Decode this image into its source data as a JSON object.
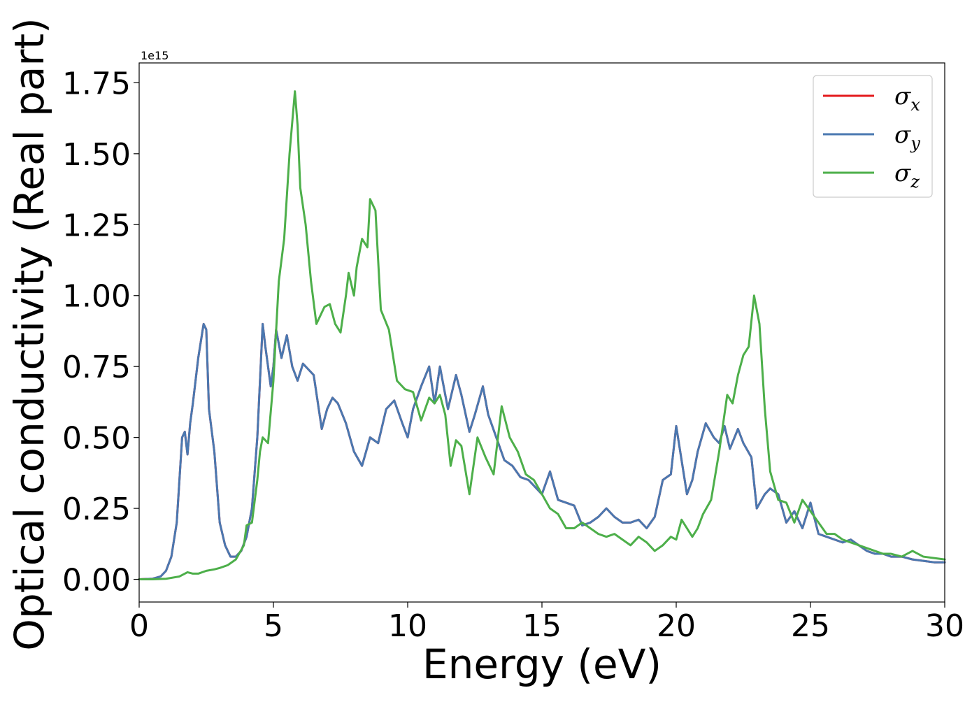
{
  "chart_data": {
    "type": "line",
    "xlabel": "Energy (eV)",
    "ylabel": "Optical conductivity (Real part)",
    "offset_text": "1e15",
    "xlim": [
      0,
      30
    ],
    "ylim": [
      -0.08,
      1.82
    ],
    "y_multiplier": 1000000000000000.0,
    "xticks": [
      "0",
      "5",
      "10",
      "15",
      "20",
      "25",
      "30"
    ],
    "yticks": [
      "0.00",
      "0.25",
      "0.50",
      "0.75",
      "1.00",
      "1.25",
      "1.50",
      "1.75"
    ],
    "legend_position": "top-right",
    "series": [
      {
        "name": "σx",
        "legend_symbol": "σ",
        "legend_subscript": "x",
        "color": "#e41a1c",
        "x": [
          0,
          0.5,
          0.8,
          1.0,
          1.2,
          1.4,
          1.6,
          1.7,
          1.8,
          1.9,
          2.0,
          2.2,
          2.4,
          2.5,
          2.6,
          2.8,
          3.0,
          3.2,
          3.4,
          3.6,
          3.8,
          4.0,
          4.2,
          4.4,
          4.6,
          4.7,
          4.9,
          5.0,
          5.1,
          5.3,
          5.5,
          5.7,
          5.9,
          6.1,
          6.3,
          6.5,
          6.8,
          7.0,
          7.2,
          7.4,
          7.7,
          8.0,
          8.3,
          8.6,
          8.9,
          9.2,
          9.5,
          9.8,
          10.0,
          10.2,
          10.5,
          10.8,
          11.0,
          11.2,
          11.5,
          11.8,
          12.0,
          12.3,
          12.5,
          12.8,
          13.0,
          13.3,
          13.6,
          13.9,
          14.2,
          14.5,
          14.8,
          15.0,
          15.3,
          15.6,
          15.9,
          16.2,
          16.5,
          16.8,
          17.1,
          17.4,
          17.7,
          18.0,
          18.3,
          18.6,
          18.9,
          19.2,
          19.5,
          19.8,
          20.0,
          20.2,
          20.4,
          20.6,
          20.8,
          21.1,
          21.4,
          21.6,
          21.8,
          22.0,
          22.3,
          22.5,
          22.8,
          23.0,
          23.3,
          23.5,
          23.8,
          24.1,
          24.4,
          24.7,
          25.0,
          25.3,
          25.6,
          25.9,
          26.2,
          26.5,
          26.8,
          27.1,
          27.4,
          27.7,
          28.0,
          28.4,
          28.8,
          29.2,
          29.6,
          30.0
        ],
        "y": [
          0.0,
          0.002,
          0.01,
          0.03,
          0.08,
          0.2,
          0.5,
          0.52,
          0.44,
          0.55,
          0.62,
          0.78,
          0.9,
          0.88,
          0.6,
          0.45,
          0.2,
          0.12,
          0.08,
          0.08,
          0.1,
          0.15,
          0.25,
          0.5,
          0.9,
          0.82,
          0.68,
          0.75,
          0.88,
          0.78,
          0.86,
          0.75,
          0.7,
          0.76,
          0.74,
          0.72,
          0.53,
          0.6,
          0.64,
          0.62,
          0.55,
          0.45,
          0.4,
          0.5,
          0.48,
          0.6,
          0.63,
          0.55,
          0.5,
          0.6,
          0.68,
          0.75,
          0.62,
          0.75,
          0.6,
          0.72,
          0.65,
          0.52,
          0.58,
          0.68,
          0.58,
          0.5,
          0.42,
          0.4,
          0.36,
          0.35,
          0.32,
          0.3,
          0.38,
          0.28,
          0.27,
          0.26,
          0.19,
          0.2,
          0.22,
          0.25,
          0.22,
          0.2,
          0.2,
          0.21,
          0.18,
          0.22,
          0.35,
          0.37,
          0.54,
          0.42,
          0.3,
          0.35,
          0.45,
          0.55,
          0.5,
          0.48,
          0.54,
          0.46,
          0.53,
          0.48,
          0.43,
          0.25,
          0.3,
          0.32,
          0.3,
          0.2,
          0.24,
          0.18,
          0.27,
          0.16,
          0.15,
          0.14,
          0.13,
          0.14,
          0.12,
          0.1,
          0.09,
          0.09,
          0.08,
          0.08,
          0.07,
          0.065,
          0.06,
          0.06
        ]
      },
      {
        "name": "σy",
        "legend_symbol": "σ",
        "legend_subscript": "y",
        "color": "#4a78b0",
        "x": [
          0,
          0.5,
          0.8,
          1.0,
          1.2,
          1.4,
          1.6,
          1.7,
          1.8,
          1.9,
          2.0,
          2.2,
          2.4,
          2.5,
          2.6,
          2.8,
          3.0,
          3.2,
          3.4,
          3.6,
          3.8,
          4.0,
          4.2,
          4.4,
          4.6,
          4.7,
          4.9,
          5.0,
          5.1,
          5.3,
          5.5,
          5.7,
          5.9,
          6.1,
          6.3,
          6.5,
          6.8,
          7.0,
          7.2,
          7.4,
          7.7,
          8.0,
          8.3,
          8.6,
          8.9,
          9.2,
          9.5,
          9.8,
          10.0,
          10.2,
          10.5,
          10.8,
          11.0,
          11.2,
          11.5,
          11.8,
          12.0,
          12.3,
          12.5,
          12.8,
          13.0,
          13.3,
          13.6,
          13.9,
          14.2,
          14.5,
          14.8,
          15.0,
          15.3,
          15.6,
          15.9,
          16.2,
          16.5,
          16.8,
          17.1,
          17.4,
          17.7,
          18.0,
          18.3,
          18.6,
          18.9,
          19.2,
          19.5,
          19.8,
          20.0,
          20.2,
          20.4,
          20.6,
          20.8,
          21.1,
          21.4,
          21.6,
          21.8,
          22.0,
          22.3,
          22.5,
          22.8,
          23.0,
          23.3,
          23.5,
          23.8,
          24.1,
          24.4,
          24.7,
          25.0,
          25.3,
          25.6,
          25.9,
          26.2,
          26.5,
          26.8,
          27.1,
          27.4,
          27.7,
          28.0,
          28.4,
          28.8,
          29.2,
          29.6,
          30.0
        ],
        "y": [
          0.0,
          0.002,
          0.01,
          0.03,
          0.08,
          0.2,
          0.5,
          0.52,
          0.44,
          0.55,
          0.62,
          0.78,
          0.9,
          0.88,
          0.6,
          0.45,
          0.2,
          0.12,
          0.08,
          0.08,
          0.1,
          0.15,
          0.25,
          0.5,
          0.9,
          0.82,
          0.68,
          0.75,
          0.88,
          0.78,
          0.86,
          0.75,
          0.7,
          0.76,
          0.74,
          0.72,
          0.53,
          0.6,
          0.64,
          0.62,
          0.55,
          0.45,
          0.4,
          0.5,
          0.48,
          0.6,
          0.63,
          0.55,
          0.5,
          0.6,
          0.68,
          0.75,
          0.62,
          0.75,
          0.6,
          0.72,
          0.65,
          0.52,
          0.58,
          0.68,
          0.58,
          0.5,
          0.42,
          0.4,
          0.36,
          0.35,
          0.32,
          0.3,
          0.38,
          0.28,
          0.27,
          0.26,
          0.19,
          0.2,
          0.22,
          0.25,
          0.22,
          0.2,
          0.2,
          0.21,
          0.18,
          0.22,
          0.35,
          0.37,
          0.54,
          0.42,
          0.3,
          0.35,
          0.45,
          0.55,
          0.5,
          0.48,
          0.54,
          0.46,
          0.53,
          0.48,
          0.43,
          0.25,
          0.3,
          0.32,
          0.3,
          0.2,
          0.24,
          0.18,
          0.27,
          0.16,
          0.15,
          0.14,
          0.13,
          0.14,
          0.12,
          0.1,
          0.09,
          0.09,
          0.08,
          0.08,
          0.07,
          0.065,
          0.06,
          0.06
        ]
      },
      {
        "name": "σz",
        "legend_symbol": "σ",
        "legend_subscript": "z",
        "color": "#4daf4a",
        "x": [
          0,
          0.5,
          1.0,
          1.5,
          1.8,
          2.0,
          2.2,
          2.5,
          2.8,
          3.0,
          3.3,
          3.6,
          3.9,
          4.0,
          4.2,
          4.4,
          4.5,
          4.6,
          4.8,
          5.0,
          5.2,
          5.4,
          5.6,
          5.8,
          5.9,
          6.0,
          6.2,
          6.4,
          6.6,
          6.9,
          7.1,
          7.3,
          7.5,
          7.7,
          7.8,
          8.0,
          8.1,
          8.3,
          8.5,
          8.6,
          8.8,
          9.0,
          9.3,
          9.6,
          9.9,
          10.2,
          10.5,
          10.8,
          11.0,
          11.2,
          11.4,
          11.6,
          11.8,
          12.0,
          12.3,
          12.6,
          12.9,
          13.2,
          13.5,
          13.8,
          14.1,
          14.4,
          14.7,
          15.0,
          15.3,
          15.6,
          15.9,
          16.2,
          16.5,
          16.8,
          17.1,
          17.4,
          17.7,
          18.0,
          18.3,
          18.6,
          18.9,
          19.2,
          19.5,
          19.8,
          20.0,
          20.2,
          20.4,
          20.6,
          20.8,
          21.0,
          21.3,
          21.6,
          21.9,
          22.1,
          22.3,
          22.5,
          22.7,
          22.9,
          23.1,
          23.3,
          23.5,
          23.8,
          24.1,
          24.4,
          24.7,
          25.0,
          25.3,
          25.6,
          25.9,
          26.2,
          26.5,
          26.8,
          27.1,
          27.4,
          27.7,
          28.0,
          28.4,
          28.8,
          29.2,
          29.6,
          30.0
        ],
        "y": [
          0.0,
          0.0,
          0.002,
          0.01,
          0.025,
          0.02,
          0.02,
          0.03,
          0.035,
          0.04,
          0.05,
          0.07,
          0.12,
          0.19,
          0.2,
          0.35,
          0.45,
          0.5,
          0.48,
          0.7,
          1.05,
          1.2,
          1.5,
          1.72,
          1.6,
          1.38,
          1.25,
          1.05,
          0.9,
          0.96,
          0.97,
          0.9,
          0.87,
          1.0,
          1.08,
          1.0,
          1.1,
          1.2,
          1.17,
          1.34,
          1.3,
          0.95,
          0.88,
          0.7,
          0.67,
          0.66,
          0.56,
          0.64,
          0.62,
          0.65,
          0.58,
          0.4,
          0.49,
          0.47,
          0.3,
          0.5,
          0.43,
          0.37,
          0.61,
          0.5,
          0.45,
          0.37,
          0.35,
          0.3,
          0.25,
          0.23,
          0.18,
          0.18,
          0.2,
          0.18,
          0.16,
          0.15,
          0.16,
          0.14,
          0.12,
          0.15,
          0.13,
          0.1,
          0.12,
          0.15,
          0.14,
          0.21,
          0.18,
          0.15,
          0.18,
          0.23,
          0.28,
          0.45,
          0.65,
          0.62,
          0.72,
          0.79,
          0.82,
          1.0,
          0.9,
          0.6,
          0.38,
          0.28,
          0.27,
          0.2,
          0.28,
          0.24,
          0.2,
          0.16,
          0.16,
          0.14,
          0.13,
          0.12,
          0.11,
          0.1,
          0.09,
          0.09,
          0.08,
          0.1,
          0.08,
          0.075,
          0.07
        ]
      }
    ]
  }
}
